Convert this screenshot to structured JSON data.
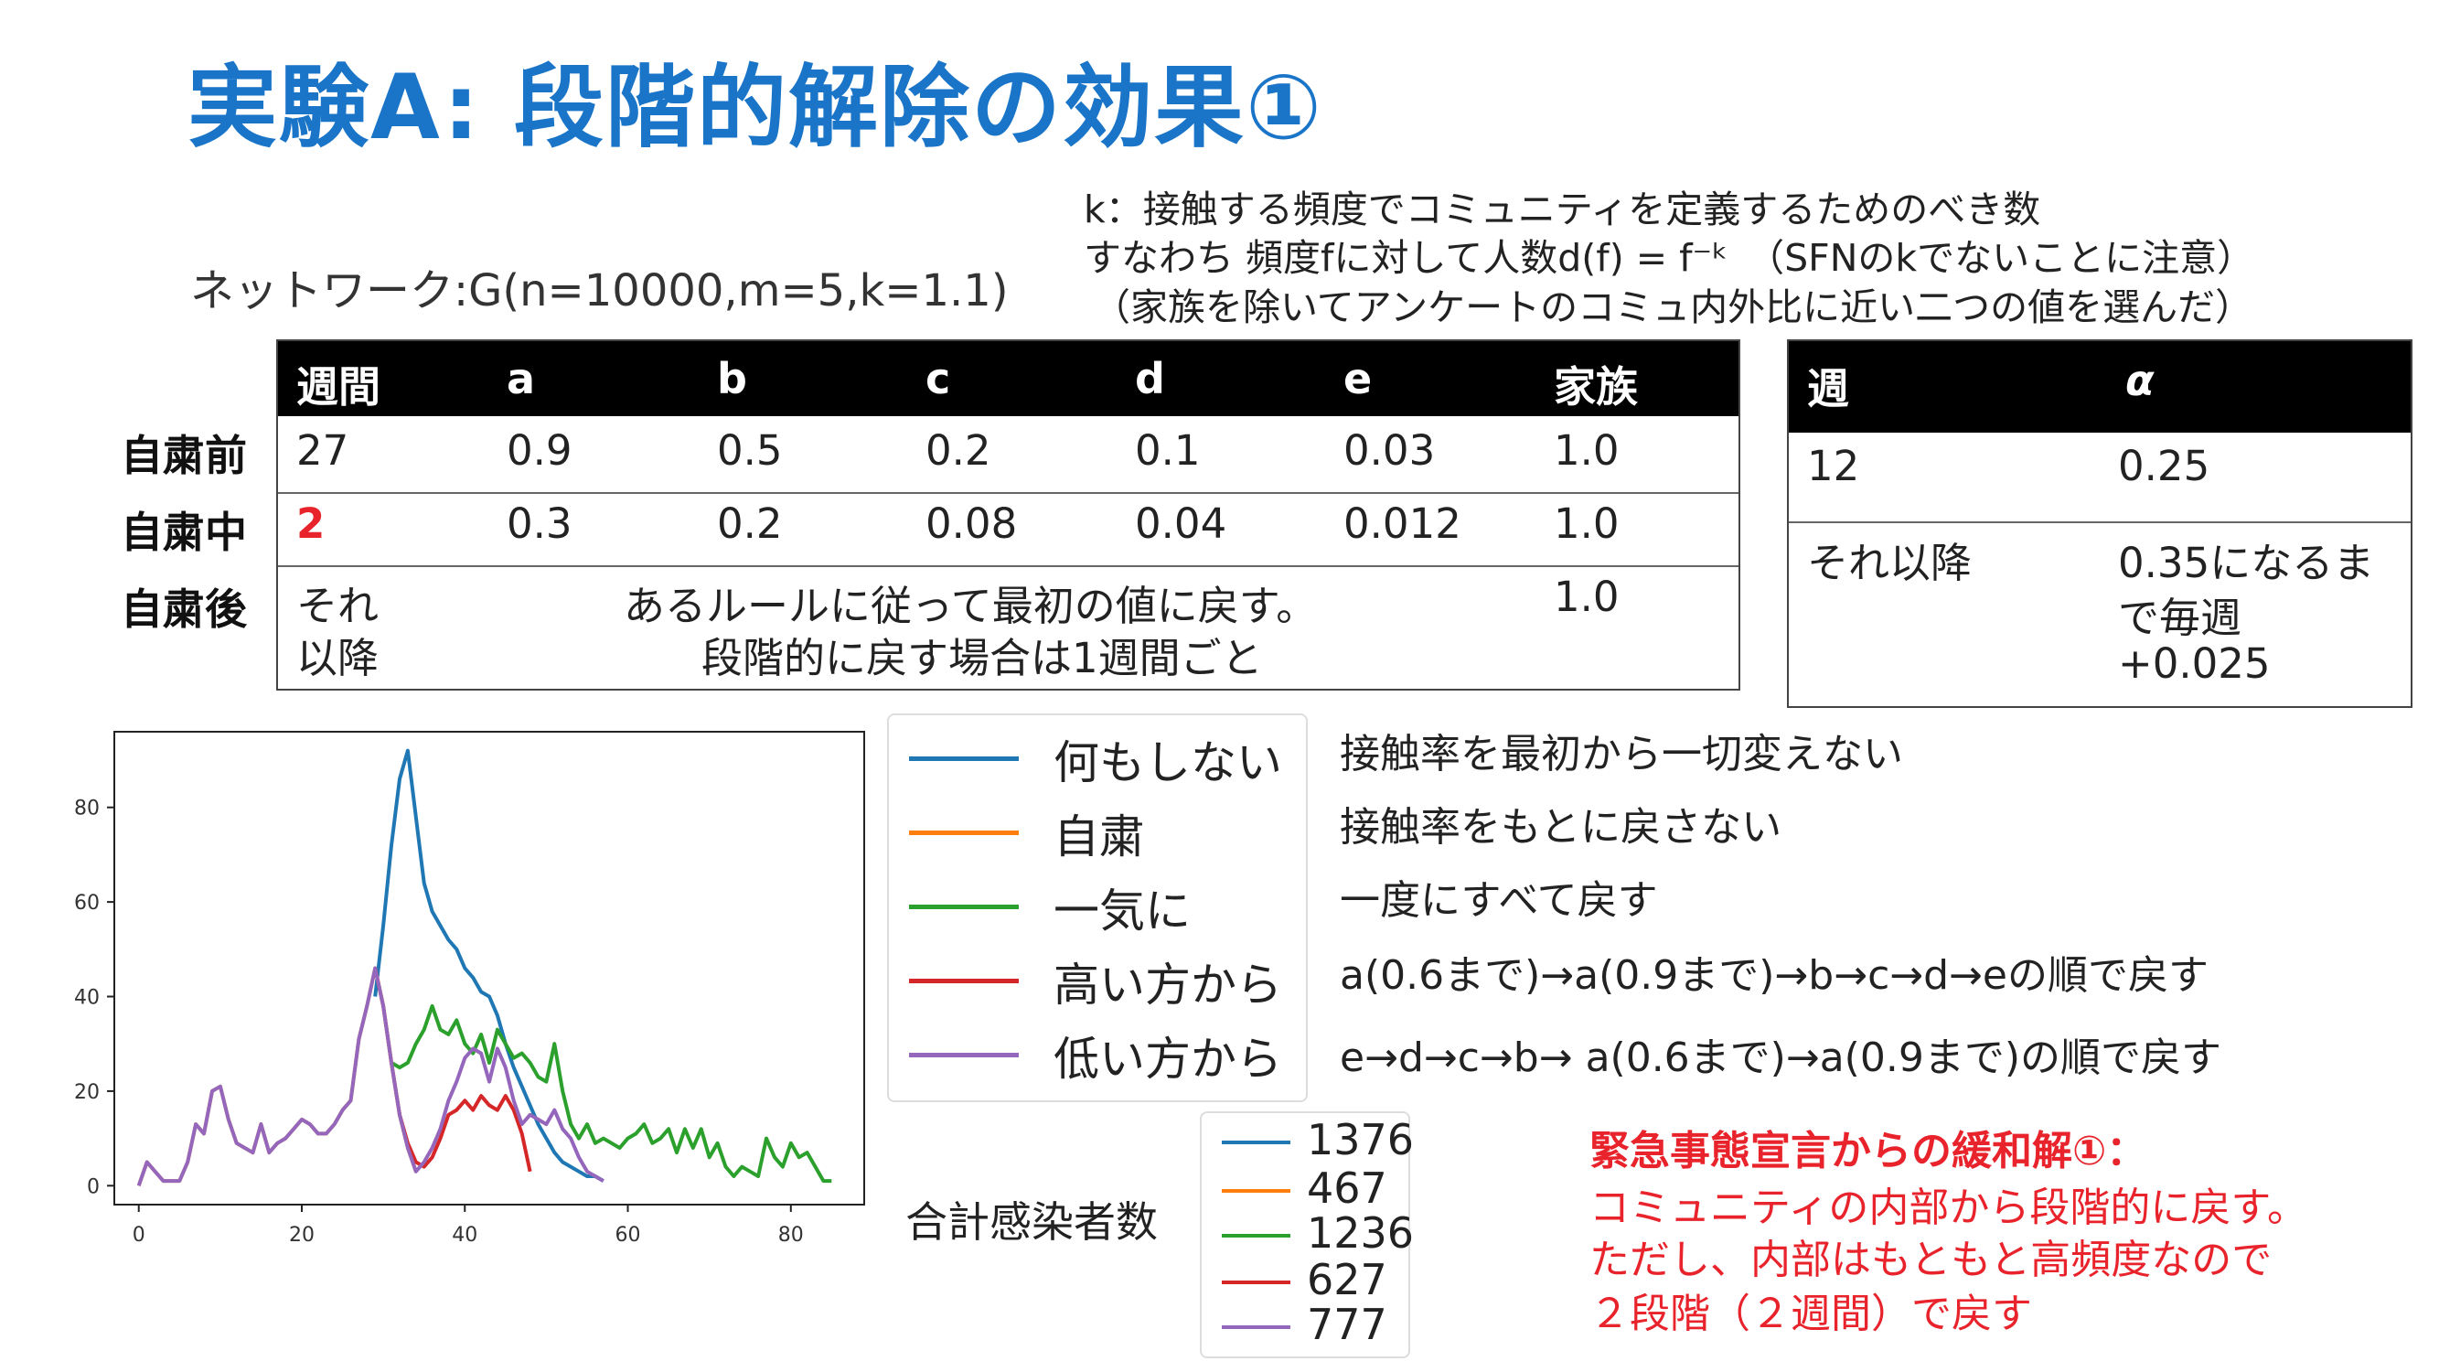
{
  "title": "実験A: 段階的解除の効果①",
  "network_label": "ネットワーク:G(n=10000,m=5,k=1.1)",
  "notes": [
    "k：接触する頻度でコミュニティを定義するためのべき数",
    "すなわち 頻度fに対して人数d(f) = f⁻ᵏ　（SFNのkでないことに注意）",
    "（家族を除いてアンケートのコミュ内外比に近い二つの値を選んだ）"
  ],
  "param_table": {
    "headers": [
      "週間",
      "a",
      "b",
      "c",
      "d",
      "e",
      "家族"
    ],
    "rows": [
      {
        "label": "自粛前",
        "cells": [
          "27",
          "0.9",
          "0.5",
          "0.2",
          "0.1",
          "0.03",
          "1.0"
        ]
      },
      {
        "label": "自粛中",
        "cells": [
          "2",
          "0.3",
          "0.2",
          "0.08",
          "0.04",
          "0.012",
          "1.0"
        ]
      },
      {
        "label": "自粛後",
        "first": [
          "それ",
          "以降"
        ],
        "merged": [
          "あるルールに従って最初の値に戻す。",
          "段階的に戻す場合は1週間ごと"
        ],
        "family": "1.0"
      }
    ]
  },
  "alpha_table": {
    "headers": [
      "週",
      "α"
    ],
    "rows": [
      {
        "week": "12",
        "value": [
          "0.25"
        ]
      },
      {
        "week": "それ以降",
        "value": [
          "0.35になるま",
          "で毎週",
          "+0.025"
        ]
      }
    ]
  },
  "legend": [
    {
      "label": "何もしない",
      "color": "#1f77b4",
      "desc": "接触率を最初から一切変えない"
    },
    {
      "label": "自粛",
      "color": "#ff7f0e",
      "desc": "接触率をもとに戻さない"
    },
    {
      "label": "一気に",
      "color": "#2ca02c",
      "desc": "一度にすべて戻す"
    },
    {
      "label": "高い方から",
      "color": "#d62728",
      "desc": "a(0.6まで)→a(0.9まで)→b→c→d→eの順で戻す"
    },
    {
      "label": "低い方から",
      "color": "#9467bd",
      "desc": "e→d→c→b→ a(0.6まで)→a(0.9まで)の順で戻す"
    }
  ],
  "totals_label": "合計感染者数",
  "totals": [
    {
      "value": "1376",
      "color": "#1f77b4"
    },
    {
      "value": "467",
      "color": "#ff7f0e"
    },
    {
      "value": "1236",
      "color": "#2ca02c"
    },
    {
      "value": "627",
      "color": "#d62728"
    },
    {
      "value": "777",
      "color": "#9467bd"
    }
  ],
  "red_note": [
    "緊急事態宣言からの緩和解①：",
    "コミュニティの内部から段階的に戻す。",
    "ただし、内部はもともと高頻度なので",
    "２段階（２週間）で戻す"
  ],
  "chart_data": {
    "type": "line",
    "xlim": [
      -3,
      89
    ],
    "ylim": [
      -4,
      96
    ],
    "xticks": [
      0,
      20,
      40,
      60,
      80
    ],
    "yticks": [
      0,
      20,
      40,
      60,
      80
    ],
    "series": [
      {
        "name": "何もしない",
        "color": "#1f77b4",
        "x": [
          29,
          30,
          31,
          32,
          33,
          34,
          35,
          36,
          37,
          38,
          39,
          40,
          41,
          42,
          43,
          44,
          45,
          46,
          47,
          48,
          49,
          50,
          51,
          52,
          53,
          54,
          55,
          56,
          57
        ],
        "y": [
          40,
          55,
          72,
          86,
          92,
          78,
          64,
          58,
          55,
          52,
          50,
          46,
          44,
          41,
          40,
          36,
          30,
          25,
          21,
          17,
          13,
          10,
          7,
          5,
          4,
          3,
          2,
          2,
          1
        ]
      },
      {
        "name": "自粛",
        "color": "#ff7f0e",
        "x": [
          0,
          1,
          2,
          3,
          4,
          5,
          6,
          7,
          8,
          9,
          10,
          11,
          12,
          13,
          14,
          15,
          16,
          17,
          18,
          19,
          20,
          21,
          22,
          23,
          24,
          25,
          26,
          27,
          28,
          29,
          30,
          31,
          32,
          33,
          34
        ],
        "y": [
          0,
          5,
          3,
          1,
          1,
          1,
          5,
          13,
          11,
          20,
          21,
          14,
          9,
          8,
          7,
          13,
          7,
          9,
          10,
          12,
          14,
          13,
          11,
          11,
          13,
          16,
          18,
          31,
          38,
          46,
          38,
          26,
          15,
          8,
          3
        ]
      },
      {
        "name": "一気に",
        "color": "#2ca02c",
        "x": [
          31,
          32,
          33,
          34,
          35,
          36,
          37,
          38,
          39,
          40,
          41,
          42,
          43,
          44,
          45,
          46,
          47,
          48,
          49,
          50,
          51,
          52,
          53,
          54,
          55,
          56,
          57,
          58,
          59,
          60,
          61,
          62,
          63,
          64,
          65,
          66,
          67,
          68,
          69,
          70,
          71,
          72,
          73,
          74,
          75,
          76,
          77,
          78,
          79,
          80,
          81,
          82,
          83,
          84,
          85
        ],
        "y": [
          26,
          25,
          26,
          30,
          33,
          38,
          33,
          32,
          35,
          30,
          28,
          32,
          26,
          33,
          30,
          27,
          28,
          26,
          23,
          22,
          30,
          20,
          13,
          10,
          13,
          9,
          10,
          9,
          8,
          10,
          11,
          13,
          9,
          10,
          12,
          7,
          12,
          8,
          12,
          6,
          9,
          4,
          2,
          4,
          3,
          2,
          10,
          6,
          4,
          9,
          6,
          7,
          4,
          1,
          1
        ]
      },
      {
        "name": "高い方から",
        "color": "#d62728",
        "x": [
          29,
          30,
          31,
          32,
          33,
          34,
          35,
          36,
          37,
          38,
          39,
          40,
          41,
          42,
          43,
          44,
          45,
          46,
          47,
          48
        ],
        "y": [
          46,
          38,
          26,
          15,
          9,
          5,
          4,
          6,
          10,
          15,
          16,
          18,
          16,
          19,
          17,
          16,
          19,
          16,
          11,
          3
        ]
      },
      {
        "name": "低い方から",
        "color": "#9467bd",
        "x": [
          0,
          1,
          2,
          3,
          4,
          5,
          6,
          7,
          8,
          9,
          10,
          11,
          12,
          13,
          14,
          15,
          16,
          17,
          18,
          19,
          20,
          21,
          22,
          23,
          24,
          25,
          26,
          27,
          28,
          29,
          30,
          31,
          32,
          33,
          34,
          35,
          36,
          37,
          38,
          39,
          40,
          41,
          42,
          43,
          44,
          45,
          46,
          47,
          48,
          49,
          50,
          51,
          52,
          53,
          54,
          55,
          56,
          57
        ],
        "y": [
          0,
          5,
          3,
          1,
          1,
          1,
          5,
          13,
          11,
          20,
          21,
          14,
          9,
          8,
          7,
          13,
          7,
          9,
          10,
          12,
          14,
          13,
          11,
          11,
          13,
          16,
          18,
          31,
          38,
          46,
          38,
          26,
          15,
          8,
          3,
          5,
          8,
          12,
          18,
          22,
          27,
          29,
          28,
          22,
          29,
          25,
          18,
          13,
          15,
          14,
          13,
          16,
          12,
          10,
          6,
          3,
          2,
          1
        ]
      }
    ]
  }
}
